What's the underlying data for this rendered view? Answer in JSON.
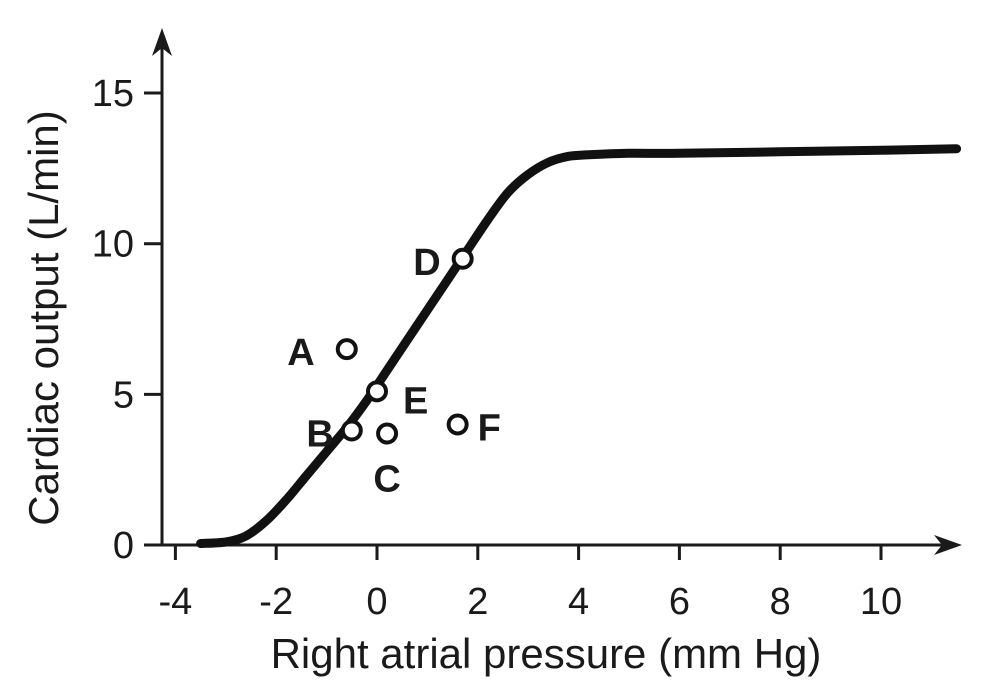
{
  "chart_data": {
    "type": "line",
    "title": "",
    "xlabel": "Right atrial pressure (mm Hg)",
    "ylabel": "Cardiac output (L/min)",
    "xlim": [
      -4,
      11.5
    ],
    "ylim": [
      0,
      17
    ],
    "x_ticks": [
      -4,
      -2,
      0,
      2,
      4,
      6,
      8,
      10
    ],
    "y_ticks": [
      0,
      5,
      10,
      15
    ],
    "x_tick_labels": [
      "-4",
      "-2",
      "0",
      "2",
      "4",
      "6",
      "8",
      "10"
    ],
    "y_tick_labels": [
      "0",
      "5",
      "10",
      "15"
    ],
    "grid": false,
    "curve": {
      "x": [
        -3.5,
        -3.0,
        -2.6,
        -2.2,
        -1.8,
        -1.4,
        -1.0,
        -0.6,
        -0.2,
        0.2,
        0.6,
        1.0,
        1.4,
        1.8,
        2.2,
        2.6,
        3.0,
        3.4,
        3.8,
        4.2,
        5.0,
        6.0,
        8.0,
        10.0,
        11.5
      ],
      "y": [
        0.05,
        0.1,
        0.3,
        0.8,
        1.5,
        2.3,
        3.1,
        3.9,
        4.8,
        5.8,
        6.8,
        7.8,
        8.8,
        9.8,
        10.8,
        11.7,
        12.3,
        12.7,
        12.9,
        12.95,
        13.0,
        13.0,
        13.05,
        13.1,
        13.15
      ]
    },
    "points": [
      {
        "label": "A",
        "x": -0.6,
        "y": 6.5
      },
      {
        "label": "B",
        "x": -0.5,
        "y": 3.8
      },
      {
        "label": "C",
        "x": 0.2,
        "y": 3.7
      },
      {
        "label": "D",
        "x": 1.7,
        "y": 9.5
      },
      {
        "label": "E",
        "x": 0.0,
        "y": 5.1
      },
      {
        "label": "F",
        "x": 1.6,
        "y": 4.0
      }
    ]
  }
}
